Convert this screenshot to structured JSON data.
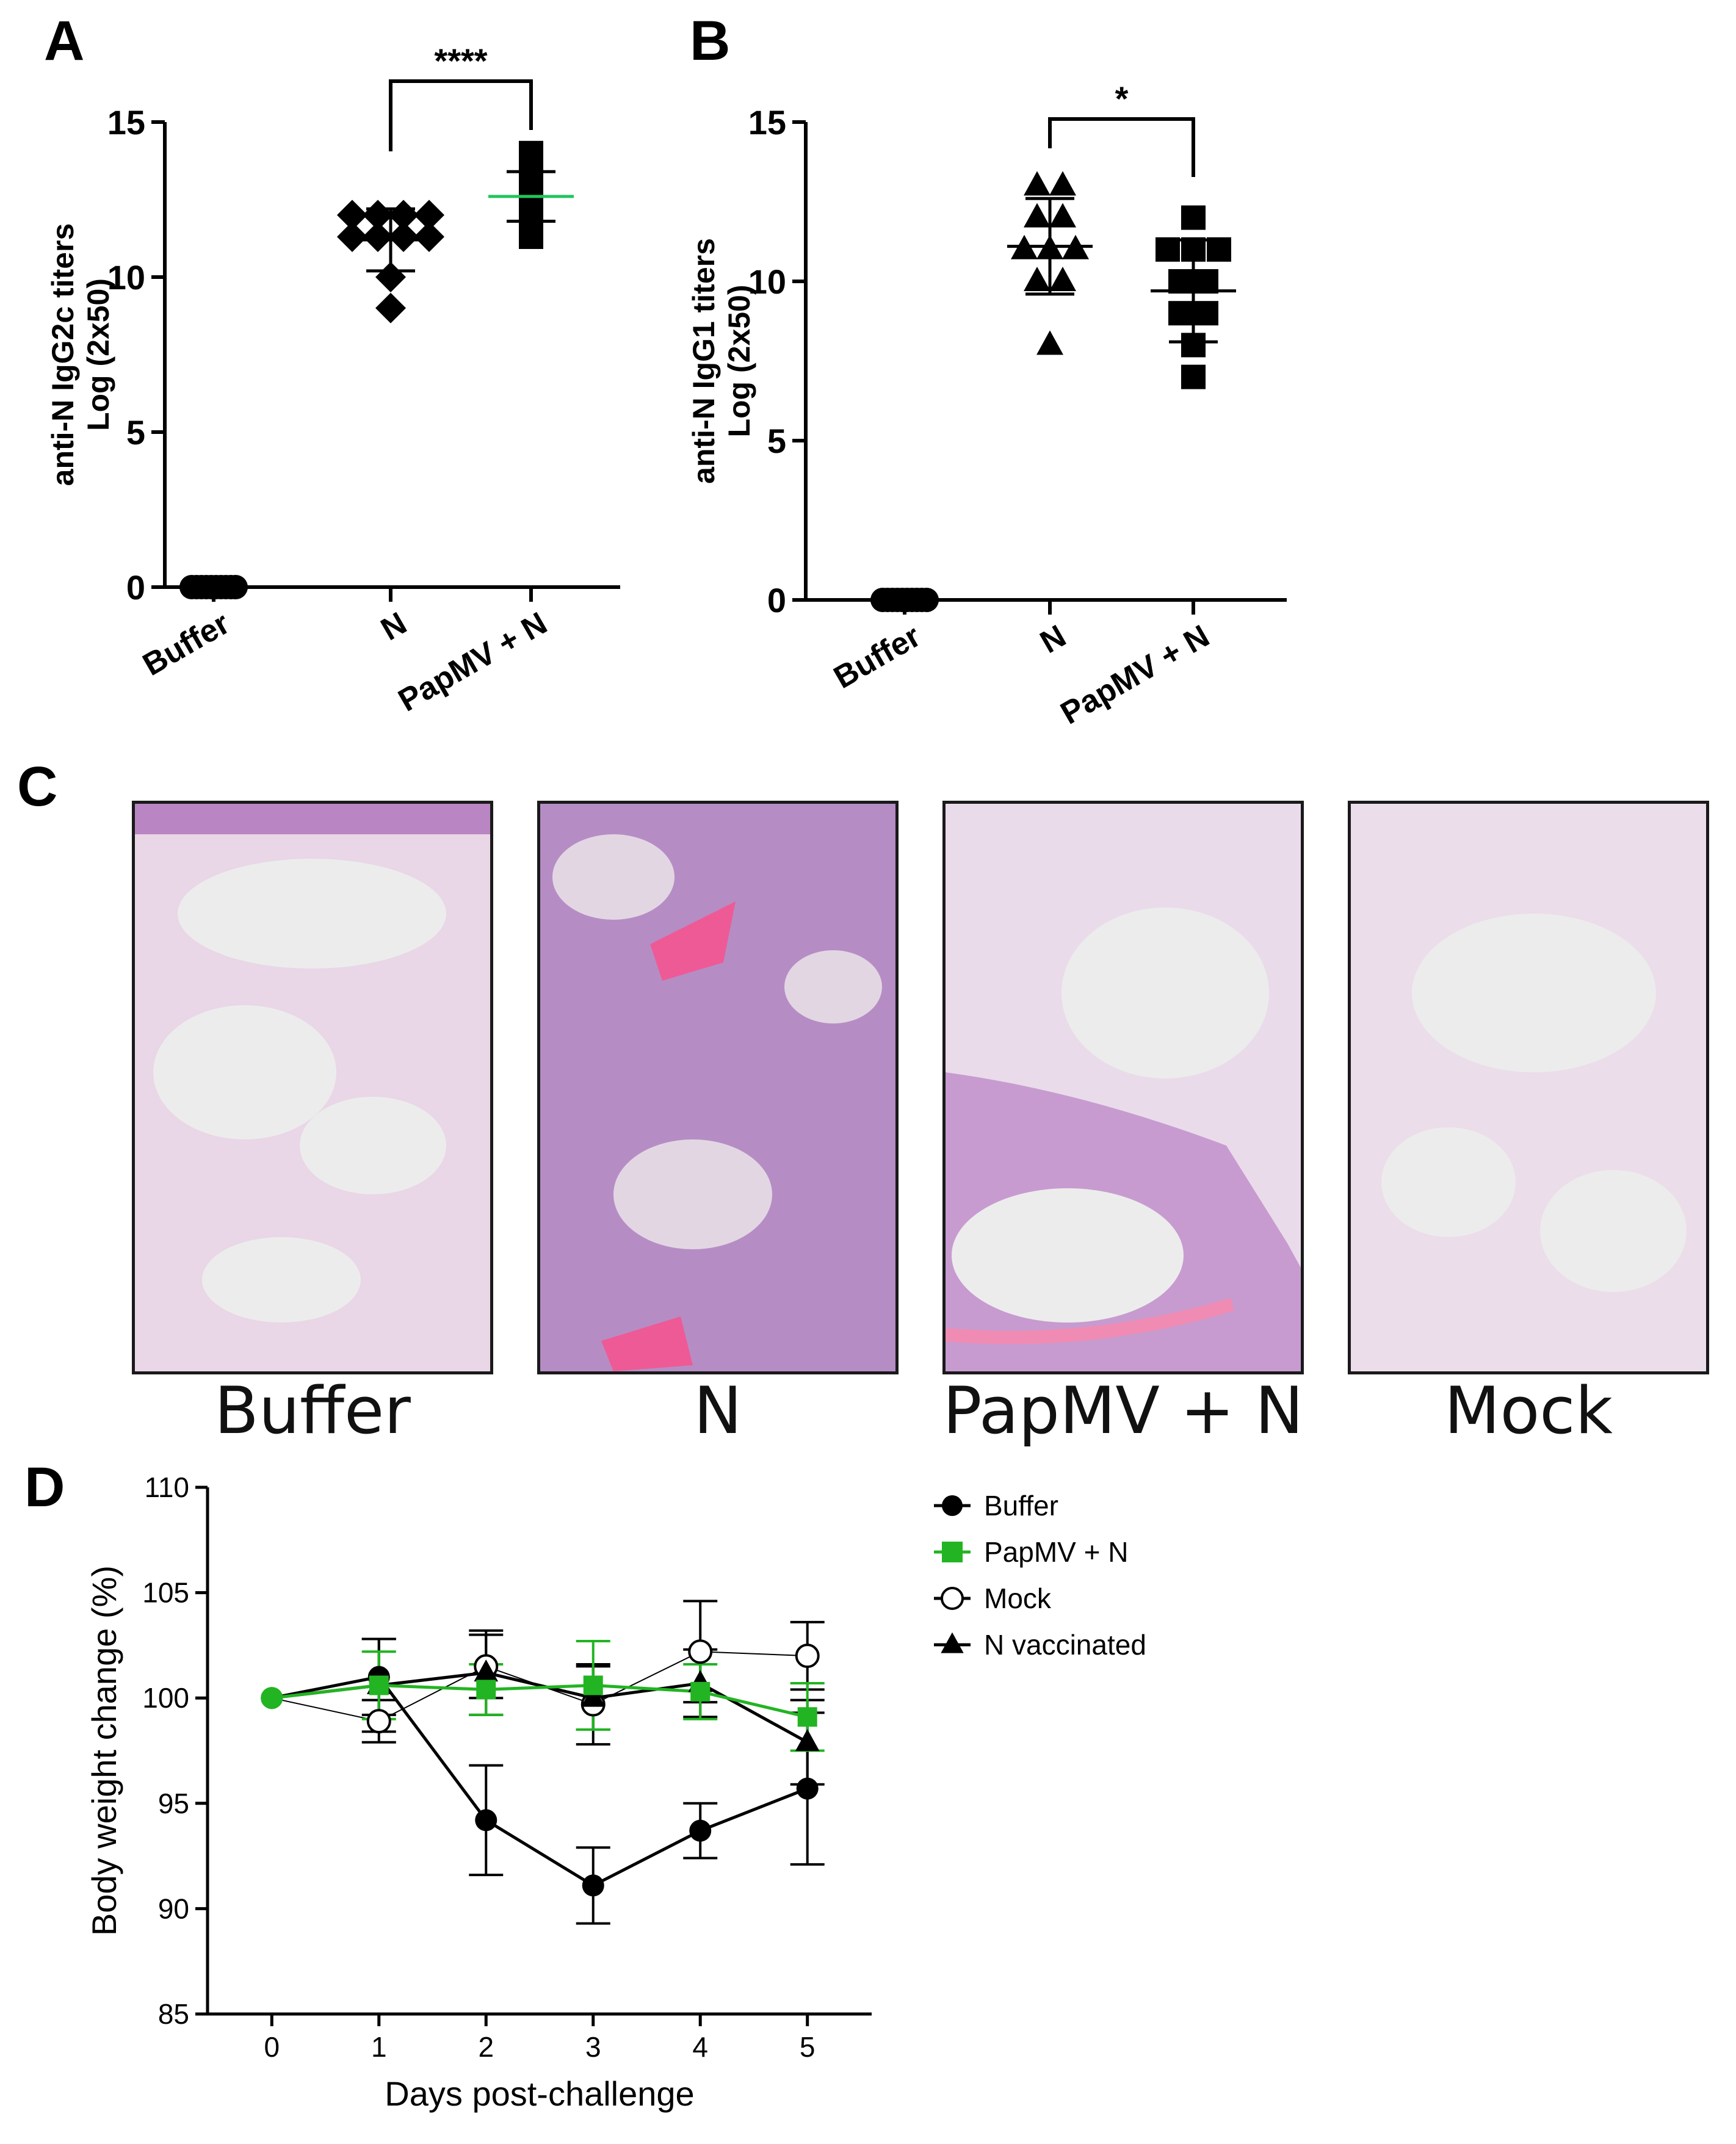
{
  "panel_labels": [
    "A",
    "B",
    "C",
    "D"
  ],
  "histology": {
    "captions": [
      "Buffer",
      "N",
      "PapMV + N",
      "Mock"
    ]
  },
  "chart_data": [
    {
      "panel": "A",
      "type": "scatter",
      "ylabel_lines": [
        "anti-N IgG2c titers",
        "Log (2x50)"
      ],
      "categories": [
        "Buffer",
        "N",
        "PapMV + N"
      ],
      "ylim": [
        0,
        15
      ],
      "yticks": [
        0,
        5,
        10,
        15
      ],
      "markers": [
        "circle",
        "diamond",
        "square"
      ],
      "points": [
        [
          0,
          0,
          0,
          0,
          0,
          0,
          0,
          0,
          0,
          0
        ],
        [
          12,
          12,
          12,
          12,
          11.3,
          11.3,
          11.3,
          11.3,
          10,
          9
        ],
        [
          14,
          13.3,
          13,
          12.8,
          12.7,
          12.6,
          12.5,
          12.3,
          12,
          11.3
        ]
      ],
      "mean": [
        0,
        11.2,
        12.6
      ],
      "sd": [
        0,
        1.0,
        0.8
      ],
      "significance": {
        "pair": [
          1,
          2
        ],
        "label": "****"
      },
      "mean_line_colors": [
        "#000000",
        "#000000",
        "#22c55e"
      ]
    },
    {
      "panel": "B",
      "type": "scatter",
      "ylabel_lines": [
        "anti-N IgG1 titers",
        "Log (2x50)"
      ],
      "categories": [
        "Buffer",
        "N",
        "PapMV + N"
      ],
      "ylim": [
        0,
        15
      ],
      "yticks": [
        0,
        5,
        10,
        15
      ],
      "markers": [
        "circle",
        "triangle",
        "square"
      ],
      "points": [
        [
          0,
          0,
          0,
          0,
          0,
          0,
          0,
          0,
          0,
          0
        ],
        [
          13,
          13,
          12,
          12,
          11,
          11,
          11,
          10,
          10,
          8
        ],
        [
          12,
          11,
          11,
          11,
          10,
          10,
          9,
          9,
          8,
          7
        ]
      ],
      "mean": [
        0,
        11.1,
        9.7
      ],
      "sd": [
        0,
        1.5,
        1.6
      ],
      "significance": {
        "pair": [
          1,
          2
        ],
        "label": "*"
      },
      "mean_line_colors": [
        "#000000",
        "#000000",
        "#000000"
      ]
    },
    {
      "panel": "D",
      "type": "line",
      "xlabel": "Days post-challenge",
      "ylabel": "Body weight change (%)",
      "x": [
        0,
        1,
        2,
        3,
        4,
        5
      ],
      "xlim": [
        -0.6,
        5.6
      ],
      "ylim": [
        85,
        110
      ],
      "yticks": [
        85,
        90,
        95,
        100,
        105,
        110
      ],
      "legend_position": "right",
      "series": [
        {
          "name": "Buffer",
          "color": "#000000",
          "marker": "filled-circle",
          "values": [
            100,
            101,
            94.2,
            91.1,
            93.7,
            95.7
          ],
          "errors": [
            0,
            1.8,
            2.6,
            1.8,
            1.3,
            3.6
          ]
        },
        {
          "name": "PapMV + N",
          "color": "#22b422",
          "marker": "square",
          "values": [
            100,
            100.6,
            100.4,
            100.6,
            100.3,
            99.1
          ],
          "errors": [
            0,
            1.6,
            1.2,
            2.1,
            1.3,
            1.6
          ]
        },
        {
          "name": "Mock",
          "color": "#000000",
          "marker": "open-circle",
          "values": [
            100,
            98.9,
            101.5,
            99.7,
            102.2,
            102
          ],
          "errors": [
            0,
            1,
            1.5,
            1.9,
            2.4,
            1.6
          ]
        },
        {
          "name": "N vaccinated",
          "color": "#000000",
          "marker": "triangle",
          "values": [
            100,
            100.6,
            101.2,
            100,
            100.7,
            97.9
          ],
          "errors": [
            0,
            2.2,
            2,
            1.5,
            1.6,
            2
          ]
        }
      ]
    }
  ]
}
